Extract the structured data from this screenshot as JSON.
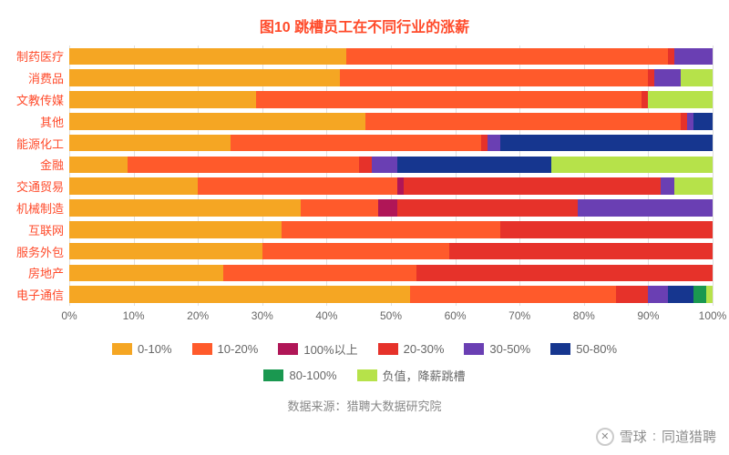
{
  "chart": {
    "type": "stacked-bar-horizontal",
    "title": "图10 跳槽员工在不同行业的涨薪",
    "title_color": "#ff4b2b",
    "title_fontsize": 16,
    "label_color": "#ff4b2b",
    "label_fontsize": 13,
    "tick_color": "#666666",
    "grid_color": "#e0e0e0",
    "background_color": "#ffffff",
    "xlim": [
      0,
      100
    ],
    "xtick_step": 10,
    "xtick_suffix": "%",
    "bar_height_ratio": 0.78,
    "legend": [
      {
        "key": "0-10%",
        "label": "0-10%",
        "color": "#f5a623"
      },
      {
        "key": "10-20%",
        "label": "10-20%",
        "color": "#ff5a2b"
      },
      {
        "key": "100%以上",
        "label": "100%以上",
        "color": "#b01657"
      },
      {
        "key": "20-30%",
        "label": "20-30%",
        "color": "#e6322a"
      },
      {
        "key": "30-50%",
        "label": "30-50%",
        "color": "#6a3fb3"
      },
      {
        "key": "50-80%",
        "label": "50-80%",
        "color": "#16368f"
      },
      {
        "key": "80-100%",
        "label": "80-100%",
        "color": "#1a9850"
      },
      {
        "key": "负值",
        "label": "负值，降薪跳槽",
        "color": "#b6e24a"
      }
    ],
    "categories": [
      {
        "label": "制药医疗",
        "values": {
          "0-10%": 43,
          "10-20%": 50,
          "100%以上": 0,
          "20-30%": 1,
          "30-50%": 6,
          "50-80%": 0,
          "80-100%": 0,
          "负值": 0
        }
      },
      {
        "label": "消费品",
        "values": {
          "0-10%": 42,
          "10-20%": 48,
          "100%以上": 0,
          "20-30%": 1,
          "30-50%": 4,
          "50-80%": 0,
          "80-100%": 0,
          "负值": 5
        }
      },
      {
        "label": "文教传媒",
        "values": {
          "0-10%": 29,
          "10-20%": 60,
          "100%以上": 0,
          "20-30%": 1,
          "30-50%": 0,
          "50-80%": 0,
          "80-100%": 0,
          "负值": 10
        }
      },
      {
        "label": "其他",
        "values": {
          "0-10%": 46,
          "10-20%": 49,
          "100%以上": 0,
          "20-30%": 1,
          "30-50%": 1,
          "50-80%": 3,
          "80-100%": 0,
          "负值": 0
        }
      },
      {
        "label": "能源化工",
        "values": {
          "0-10%": 25,
          "10-20%": 39,
          "100%以上": 0,
          "20-30%": 1,
          "30-50%": 2,
          "50-80%": 33,
          "80-100%": 0,
          "负值": 0
        }
      },
      {
        "label": "金融",
        "values": {
          "0-10%": 9,
          "10-20%": 36,
          "100%以上": 0,
          "20-30%": 2,
          "30-50%": 4,
          "50-80%": 24,
          "80-100%": 0,
          "负值": 25
        }
      },
      {
        "label": "交通贸易",
        "values": {
          "0-10%": 20,
          "10-20%": 31,
          "100%以上": 1,
          "20-30%": 40,
          "30-50%": 2,
          "50-80%": 0,
          "80-100%": 0,
          "负值": 6
        }
      },
      {
        "label": "机械制造",
        "values": {
          "0-10%": 36,
          "10-20%": 12,
          "100%以上": 3,
          "20-30%": 28,
          "30-50%": 21,
          "50-80%": 0,
          "80-100%": 0,
          "负值": 0
        }
      },
      {
        "label": "互联网",
        "values": {
          "0-10%": 33,
          "10-20%": 34,
          "100%以上": 0,
          "20-30%": 33,
          "30-50%": 0,
          "50-80%": 0,
          "80-100%": 0,
          "负值": 0
        }
      },
      {
        "label": "服务外包",
        "values": {
          "0-10%": 30,
          "10-20%": 29,
          "100%以上": 0,
          "20-30%": 41,
          "30-50%": 0,
          "50-80%": 0,
          "80-100%": 0,
          "负值": 0
        }
      },
      {
        "label": "房地产",
        "values": {
          "0-10%": 24,
          "10-20%": 30,
          "100%以上": 0,
          "20-30%": 46,
          "30-50%": 0,
          "50-80%": 0,
          "80-100%": 0,
          "负值": 0
        }
      },
      {
        "label": "电子通信",
        "values": {
          "0-10%": 53,
          "10-20%": 32,
          "100%以上": 0,
          "20-30%": 5,
          "30-50%": 3,
          "50-80%": 4,
          "80-100%": 2,
          "负值": 1
        }
      }
    ],
    "source": "数据来源：猎聘大数据研究院",
    "source_color": "#888888",
    "watermark": {
      "brand": "雪球",
      "author": "同道猎聘",
      "icon": "✕",
      "color": "rgba(0,0,0,0.45)"
    }
  }
}
